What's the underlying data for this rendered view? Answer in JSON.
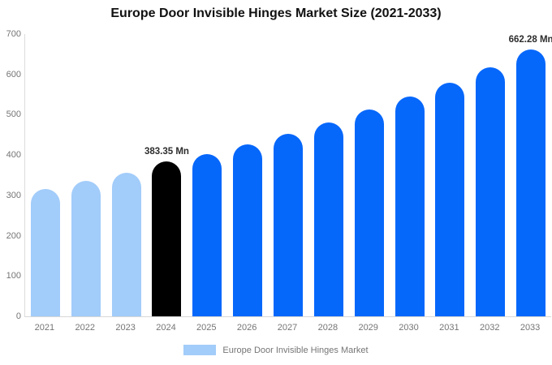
{
  "chart_data": {
    "type": "bar",
    "title": "Europe Door Invisible Hinges Market Size (2021-2033)",
    "unit": "Mn",
    "categories": [
      "2021",
      "2022",
      "2023",
      "2024",
      "2025",
      "2026",
      "2027",
      "2028",
      "2029",
      "2030",
      "2031",
      "2032",
      "2033"
    ],
    "values": [
      315,
      335,
      356,
      383.35,
      402,
      426,
      452,
      480,
      512,
      546,
      580,
      617,
      662.28
    ],
    "ylim": [
      0,
      700
    ],
    "yticks": [
      0,
      100,
      200,
      300,
      400,
      500,
      600,
      700
    ],
    "grid": false,
    "annotations": [
      {
        "category": "2024",
        "text": "383.35 Mn"
      },
      {
        "category": "2033",
        "text": "662.28 Mn"
      }
    ],
    "colors": {
      "historical": "#a2ccfa",
      "highlight": "#000000",
      "forecast": "#0667fb"
    },
    "bar_roles": [
      "historical",
      "historical",
      "historical",
      "highlight",
      "forecast",
      "forecast",
      "forecast",
      "forecast",
      "forecast",
      "forecast",
      "forecast",
      "forecast",
      "forecast"
    ],
    "legend": {
      "label": "Europe Door Invisible Hinges Market",
      "position": "bottom",
      "swatch_color": "#a2ccfa"
    }
  }
}
